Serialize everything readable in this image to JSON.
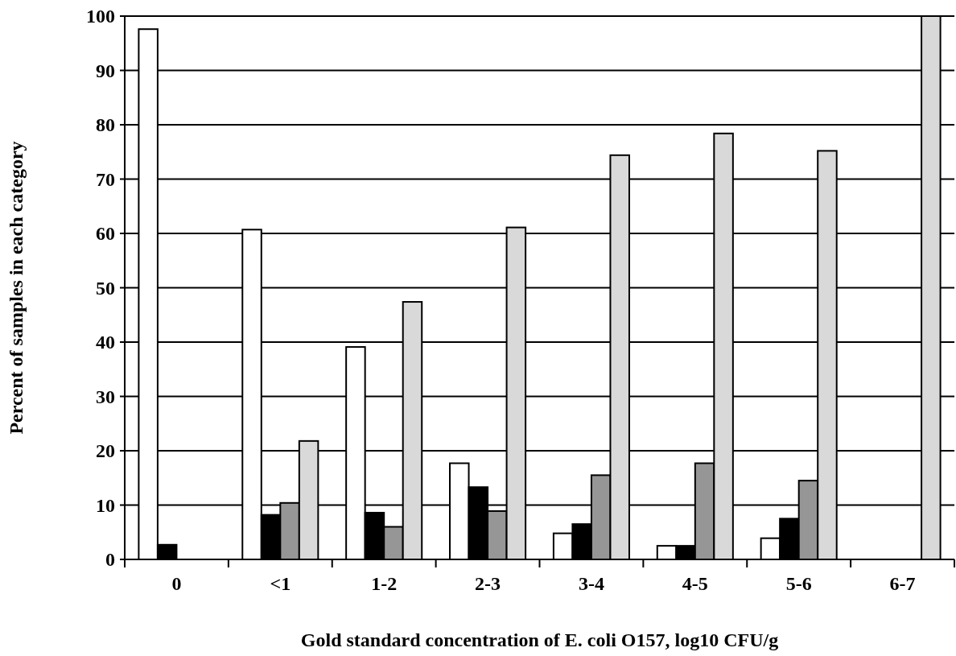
{
  "chart_data": {
    "type": "bar",
    "xlabel": "Gold standard concentration of E. coli  O157, log10 CFU/g",
    "ylabel": "Percent of samples in each category",
    "categories": [
      "0",
      "<1",
      "1-2",
      "2-3",
      "3-4",
      "4-5",
      "5-6",
      "6-7"
    ],
    "series": [
      {
        "color": "#ffffff",
        "values": [
          97.6,
          60.7,
          39.1,
          17.7,
          4.8,
          2.5,
          3.9,
          0
        ]
      },
      {
        "color": "#000000",
        "values": [
          2.7,
          8.2,
          8.6,
          13.3,
          6.5,
          2.5,
          7.5,
          0
        ]
      },
      {
        "color": "#969696",
        "values": [
          0,
          10.4,
          6.0,
          8.9,
          15.5,
          17.7,
          14.5,
          0
        ]
      },
      {
        "color": "#d9d9d9",
        "values": [
          0,
          21.8,
          47.4,
          61.1,
          74.4,
          78.4,
          75.2,
          100
        ]
      }
    ],
    "ylim": [
      0,
      100
    ],
    "yticks": [
      0,
      10,
      20,
      30,
      40,
      50,
      60,
      70,
      80,
      90,
      100
    ],
    "grid": "y"
  }
}
